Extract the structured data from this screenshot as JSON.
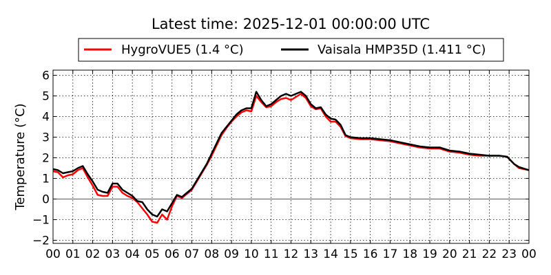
{
  "chart_data": {
    "type": "line",
    "title": "Latest time: 2025-12-01 00:00:00 UTC",
    "xlabel": "",
    "ylabel": "Temperature (°C)",
    "xlim": [
      0,
      24
    ],
    "ylim": [
      -2.15,
      6.25
    ],
    "grid": true,
    "legend_placement": "top-center",
    "x_ticks": [
      0,
      1,
      2,
      3,
      4,
      5,
      6,
      7,
      8,
      9,
      10,
      11,
      12,
      13,
      14,
      15,
      16,
      17,
      18,
      19,
      20,
      21,
      22,
      23,
      24
    ],
    "x_tick_labels": [
      "00",
      "01",
      "02",
      "03",
      "04",
      "05",
      "06",
      "07",
      "08",
      "09",
      "10",
      "11",
      "12",
      "13",
      "14",
      "15",
      "16",
      "17",
      "18",
      "19",
      "20",
      "21",
      "22",
      "23",
      "00"
    ],
    "y_ticks": [
      -2,
      -1,
      0,
      1,
      2,
      3,
      4,
      5,
      6
    ],
    "y_tick_labels": [
      "−2",
      "−1",
      "0",
      "1",
      "2",
      "3",
      "4",
      "5",
      "6"
    ],
    "zero_line": 0,
    "x": [
      0,
      0.25,
      0.5,
      0.75,
      1,
      1.25,
      1.5,
      1.75,
      2,
      2.25,
      2.5,
      2.75,
      3,
      3.25,
      3.5,
      3.75,
      4,
      4.25,
      4.5,
      4.75,
      5,
      5.25,
      5.5,
      5.75,
      6,
      6.25,
      6.5,
      6.75,
      7,
      7.25,
      7.5,
      7.75,
      8,
      8.25,
      8.5,
      8.75,
      9,
      9.25,
      9.5,
      9.75,
      10,
      10.25,
      10.5,
      10.75,
      11,
      11.25,
      11.5,
      11.75,
      12,
      12.25,
      12.5,
      12.75,
      13,
      13.25,
      13.5,
      13.75,
      14,
      14.25,
      14.5,
      14.75,
      15,
      15.5,
      16,
      16.5,
      17,
      17.5,
      18,
      18.5,
      19,
      19.5,
      20,
      20.5,
      21,
      21.5,
      22,
      22.5,
      22.9,
      23.25,
      23.5,
      24
    ],
    "series": [
      {
        "name": "HygroVUE5",
        "legend": "HygroVUE5 (1.4 °C)",
        "color": "#ff0000",
        "values": [
          1.35,
          1.3,
          1.05,
          1.15,
          1.2,
          1.4,
          1.5,
          1.05,
          0.65,
          0.2,
          0.15,
          0.15,
          0.6,
          0.6,
          0.3,
          0.15,
          0.05,
          -0.15,
          -0.45,
          -0.75,
          -1.1,
          -1.15,
          -0.75,
          -1.0,
          -0.35,
          0.15,
          0.05,
          0.25,
          0.45,
          0.85,
          1.25,
          1.65,
          2.1,
          2.6,
          3.1,
          3.45,
          3.75,
          4.0,
          4.2,
          4.3,
          4.25,
          5.0,
          4.7,
          4.45,
          4.5,
          4.7,
          4.85,
          4.9,
          4.8,
          4.95,
          5.1,
          4.9,
          4.5,
          4.35,
          4.4,
          4.0,
          3.75,
          3.75,
          3.5,
          3.05,
          2.95,
          2.9,
          2.9,
          2.85,
          2.8,
          2.7,
          2.6,
          2.5,
          2.45,
          2.45,
          2.3,
          2.25,
          2.15,
          2.1,
          2.1,
          2.1,
          2.05,
          1.7,
          1.5,
          1.4
        ]
      },
      {
        "name": "Vaisala HMP35D",
        "legend": "Vaisala HMP35D (1.411 °C)",
        "color": "#000000",
        "values": [
          1.45,
          1.4,
          1.25,
          1.3,
          1.35,
          1.5,
          1.6,
          1.2,
          0.85,
          0.45,
          0.35,
          0.3,
          0.75,
          0.75,
          0.45,
          0.3,
          0.15,
          -0.1,
          -0.15,
          -0.5,
          -0.75,
          -0.85,
          -0.5,
          -0.6,
          -0.2,
          0.2,
          0.1,
          0.3,
          0.5,
          0.9,
          1.3,
          1.7,
          2.2,
          2.7,
          3.2,
          3.5,
          3.8,
          4.1,
          4.3,
          4.4,
          4.4,
          5.2,
          4.8,
          4.5,
          4.6,
          4.8,
          5.0,
          5.1,
          5.0,
          5.1,
          5.2,
          5.0,
          4.6,
          4.4,
          4.45,
          4.1,
          3.9,
          3.85,
          3.6,
          3.1,
          3.0,
          2.95,
          2.95,
          2.9,
          2.85,
          2.75,
          2.65,
          2.55,
          2.5,
          2.5,
          2.35,
          2.3,
          2.2,
          2.15,
          2.1,
          2.1,
          2.05,
          1.7,
          1.55,
          1.4
        ]
      }
    ]
  }
}
